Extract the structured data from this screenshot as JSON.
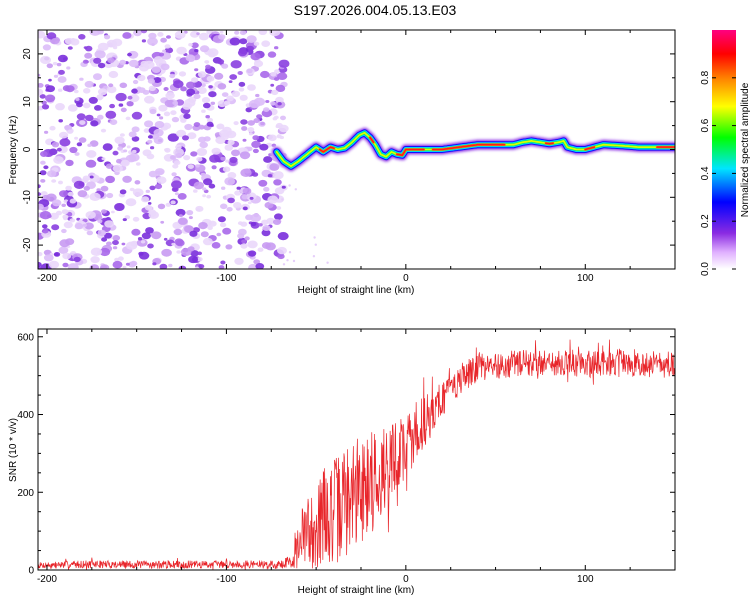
{
  "title": "S197.2026.004.05.13.E03",
  "chart_data": [
    {
      "type": "heatmap",
      "xlabel": "Height of straight line (km)",
      "ylabel": "Frequency (Hz)",
      "xlim": [
        -205,
        150
      ],
      "ylim": [
        -25,
        25
      ],
      "xticks": [
        -200,
        -100,
        0,
        100
      ],
      "yticks": [
        -20,
        -10,
        0,
        10,
        20
      ],
      "colorbar": {
        "label": "Normalized spectral amplitude",
        "range": [
          0,
          1
        ],
        "ticks": [
          0.0,
          0.2,
          0.4,
          0.6,
          0.8
        ]
      },
      "noise_region_x": [
        -205,
        -70
      ],
      "ridge": {
        "x": [
          -72,
          -68,
          -64,
          -60,
          -55,
          -50,
          -46,
          -42,
          -38,
          -34,
          -30,
          -26,
          -23,
          -20,
          -17,
          -14,
          -11,
          -8,
          -5,
          -2,
          0,
          10,
          20,
          30,
          40,
          50,
          60,
          65,
          70,
          75,
          80,
          85,
          88,
          90,
          95,
          100,
          105,
          110,
          120,
          130,
          140,
          150
        ],
        "freq": [
          -0.5,
          -2.5,
          -3.5,
          -2.5,
          -1,
          0.5,
          -0.5,
          0.5,
          0,
          0.3,
          1.5,
          3,
          3.5,
          2.5,
          1,
          -1,
          -1.5,
          -0.5,
          -1,
          -1.2,
          0,
          0,
          0,
          0.5,
          1,
          1,
          1,
          1.5,
          1.8,
          1.5,
          1.2,
          1.5,
          1.8,
          0.5,
          0,
          0,
          0.5,
          1,
          0.8,
          0.5,
          0.5,
          0.5
        ]
      }
    },
    {
      "type": "line",
      "xlabel": "Height of straight line (km)",
      "ylabel": "SNR (10 * v/v)",
      "xlim": [
        -205,
        150
      ],
      "ylim": [
        0,
        620
      ],
      "xticks": [
        -200,
        -100,
        0,
        100
      ],
      "yticks": [
        0,
        200,
        400,
        600
      ],
      "series": [
        {
          "name": "SNR",
          "color": "#e8252a",
          "x": [
            -205,
            -180,
            -150,
            -120,
            -90,
            -70,
            -63,
            -58,
            -50,
            -40,
            -30,
            -20,
            -10,
            0,
            10,
            20,
            30,
            40,
            60,
            80,
            100,
            120,
            140,
            150
          ],
          "mean": [
            12,
            15,
            14,
            14,
            15,
            14,
            25,
            80,
            120,
            150,
            190,
            230,
            265,
            320,
            380,
            440,
            490,
            520,
            530,
            535,
            530,
            535,
            530,
            525
          ],
          "spread": [
            8,
            10,
            10,
            10,
            10,
            10,
            20,
            80,
            120,
            140,
            140,
            140,
            110,
            90,
            70,
            50,
            40,
            35,
            35,
            35,
            35,
            35,
            35,
            35
          ]
        }
      ]
    }
  ]
}
